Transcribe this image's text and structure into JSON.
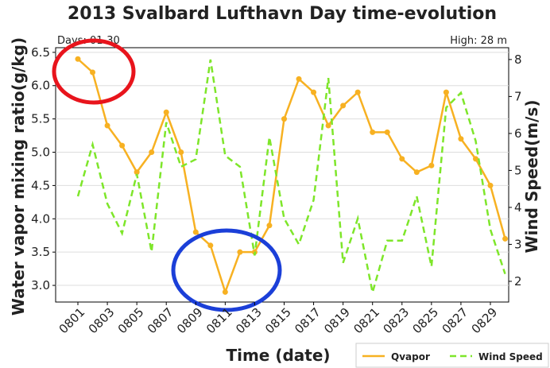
{
  "chart_data": {
    "type": "line",
    "title": "2013 Svalbard Lufthavn Day time-evolution",
    "annotations": [
      "Days: 01-30",
      "High: 28 m"
    ],
    "xlabel": "Time (date)",
    "ylabel": "Water vapor mixing ratio(g/kg)",
    "y2label": "Wind Speed(m/s)",
    "categories": [
      "0801",
      null,
      "0803",
      null,
      "0805",
      null,
      "0807",
      null,
      "0809",
      null,
      "0811",
      null,
      "0813",
      null,
      "0815",
      null,
      "0817",
      null,
      "0819",
      null,
      "0821",
      null,
      "0823",
      null,
      "0825",
      null,
      "0827",
      null,
      "0829",
      null
    ],
    "series": [
      {
        "name": "Qvapor",
        "color": "#f7b122",
        "dash": false,
        "values": [
          6.4,
          6.2,
          5.4,
          5.1,
          4.7,
          5.0,
          5.6,
          5.0,
          3.8,
          3.6,
          2.9,
          3.5,
          3.5,
          3.9,
          5.5,
          6.1,
          5.9,
          5.4,
          5.7,
          5.9,
          5.3,
          5.3,
          4.9,
          4.7,
          4.8,
          5.9,
          5.2,
          4.9,
          4.5,
          3.7
        ]
      },
      {
        "name": "Wind Speed",
        "color": "#7ee62a",
        "dash": true,
        "axis": "y2",
        "values": [
          4.3,
          5.7,
          4.1,
          3.3,
          4.9,
          2.8,
          6.3,
          5.1,
          5.3,
          8.0,
          5.4,
          5.1,
          2.7,
          5.9,
          3.7,
          3.0,
          4.2,
          7.5,
          2.5,
          3.7,
          1.7,
          3.1,
          3.1,
          4.3,
          2.4,
          6.7,
          7.1,
          5.8,
          3.4,
          2.2
        ]
      }
    ],
    "ylim": [
      2.75,
      6.57
    ],
    "yticks": [
      {
        "value": 3,
        "label": "3.0"
      },
      {
        "value": 3.5,
        "label": "3.5"
      },
      {
        "value": 4,
        "label": "4.0"
      },
      {
        "value": 4.5,
        "label": "4.5"
      },
      {
        "value": 5,
        "label": "5.0"
      },
      {
        "value": 5.5,
        "label": "5.5"
      },
      {
        "value": 6,
        "label": "6.0"
      },
      {
        "value": 6.5,
        "label": "6.5"
      }
    ],
    "y2lim": [
      1.44,
      8.32
    ],
    "y2ticks": [
      2,
      3,
      4,
      5,
      6,
      7,
      8
    ],
    "grid": true,
    "legend": "lower right"
  }
}
